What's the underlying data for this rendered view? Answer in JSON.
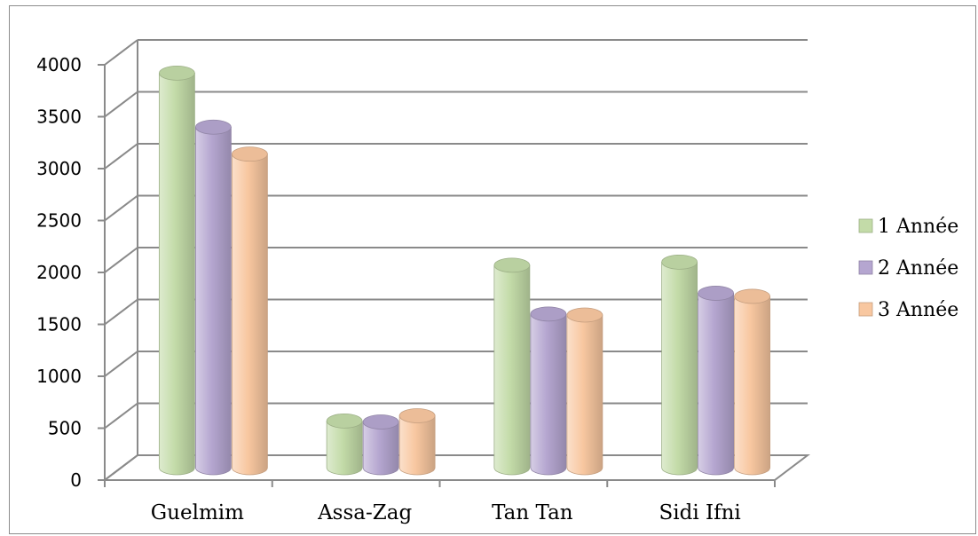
{
  "chart_data": {
    "type": "bar",
    "title": "",
    "xlabel": "",
    "ylabel": "",
    "categories": [
      "Guelmim",
      "Assa-Zag",
      "Tan Tan",
      "Sidi Ifni"
    ],
    "series": [
      {
        "name": "1 Année",
        "values": [
          3800,
          450,
          1950,
          1980
        ],
        "color": "#c3dba8"
      },
      {
        "name": "2 Année",
        "values": [
          3280,
          440,
          1480,
          1680
        ],
        "color": "#b5a6d0"
      },
      {
        "name": "3 Année",
        "values": [
          3020,
          500,
          1470,
          1650
        ],
        "color": "#f8c7a0"
      }
    ],
    "ylim": [
      0,
      4000
    ],
    "yticks": [
      0,
      500,
      1000,
      1500,
      2000,
      2500,
      3000,
      3500,
      4000
    ],
    "grid": true,
    "legend_position": "right",
    "style": "3d-cylinder"
  }
}
